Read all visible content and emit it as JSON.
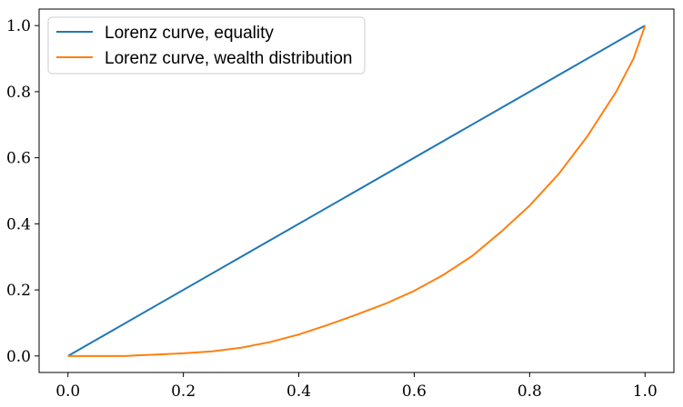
{
  "chart_data": {
    "type": "line",
    "title": "",
    "xlabel": "",
    "ylabel": "",
    "xlim": [
      -0.05,
      1.05
    ],
    "ylim": [
      -0.05,
      1.05
    ],
    "xticks": [
      0.0,
      0.2,
      0.4,
      0.6,
      0.8,
      1.0
    ],
    "yticks": [
      0.0,
      0.2,
      0.4,
      0.6,
      0.8,
      1.0
    ],
    "xtick_labels": [
      "0.0",
      "0.2",
      "0.4",
      "0.6",
      "0.8",
      "1.0"
    ],
    "ytick_labels": [
      "0.0",
      "0.2",
      "0.4",
      "0.6",
      "0.8",
      "1.0"
    ],
    "grid": false,
    "legend_position": "top-left",
    "series": [
      {
        "name": "Lorenz curve, equality",
        "color": "#1f77b4",
        "x": [
          0.0,
          1.0
        ],
        "y": [
          0.0,
          1.0
        ]
      },
      {
        "name": "Lorenz curve, wealth distribution",
        "color": "#ff7f0e",
        "x": [
          0.0,
          0.05,
          0.1,
          0.12,
          0.15,
          0.2,
          0.25,
          0.3,
          0.35,
          0.4,
          0.45,
          0.5,
          0.55,
          0.6,
          0.65,
          0.7,
          0.75,
          0.8,
          0.85,
          0.9,
          0.95,
          0.98,
          1.0
        ],
        "y": [
          0.0,
          0.0,
          0.0,
          0.002,
          0.004,
          0.008,
          0.014,
          0.025,
          0.042,
          0.065,
          0.094,
          0.125,
          0.158,
          0.197,
          0.245,
          0.302,
          0.375,
          0.455,
          0.55,
          0.665,
          0.8,
          0.9,
          1.0
        ]
      }
    ]
  }
}
